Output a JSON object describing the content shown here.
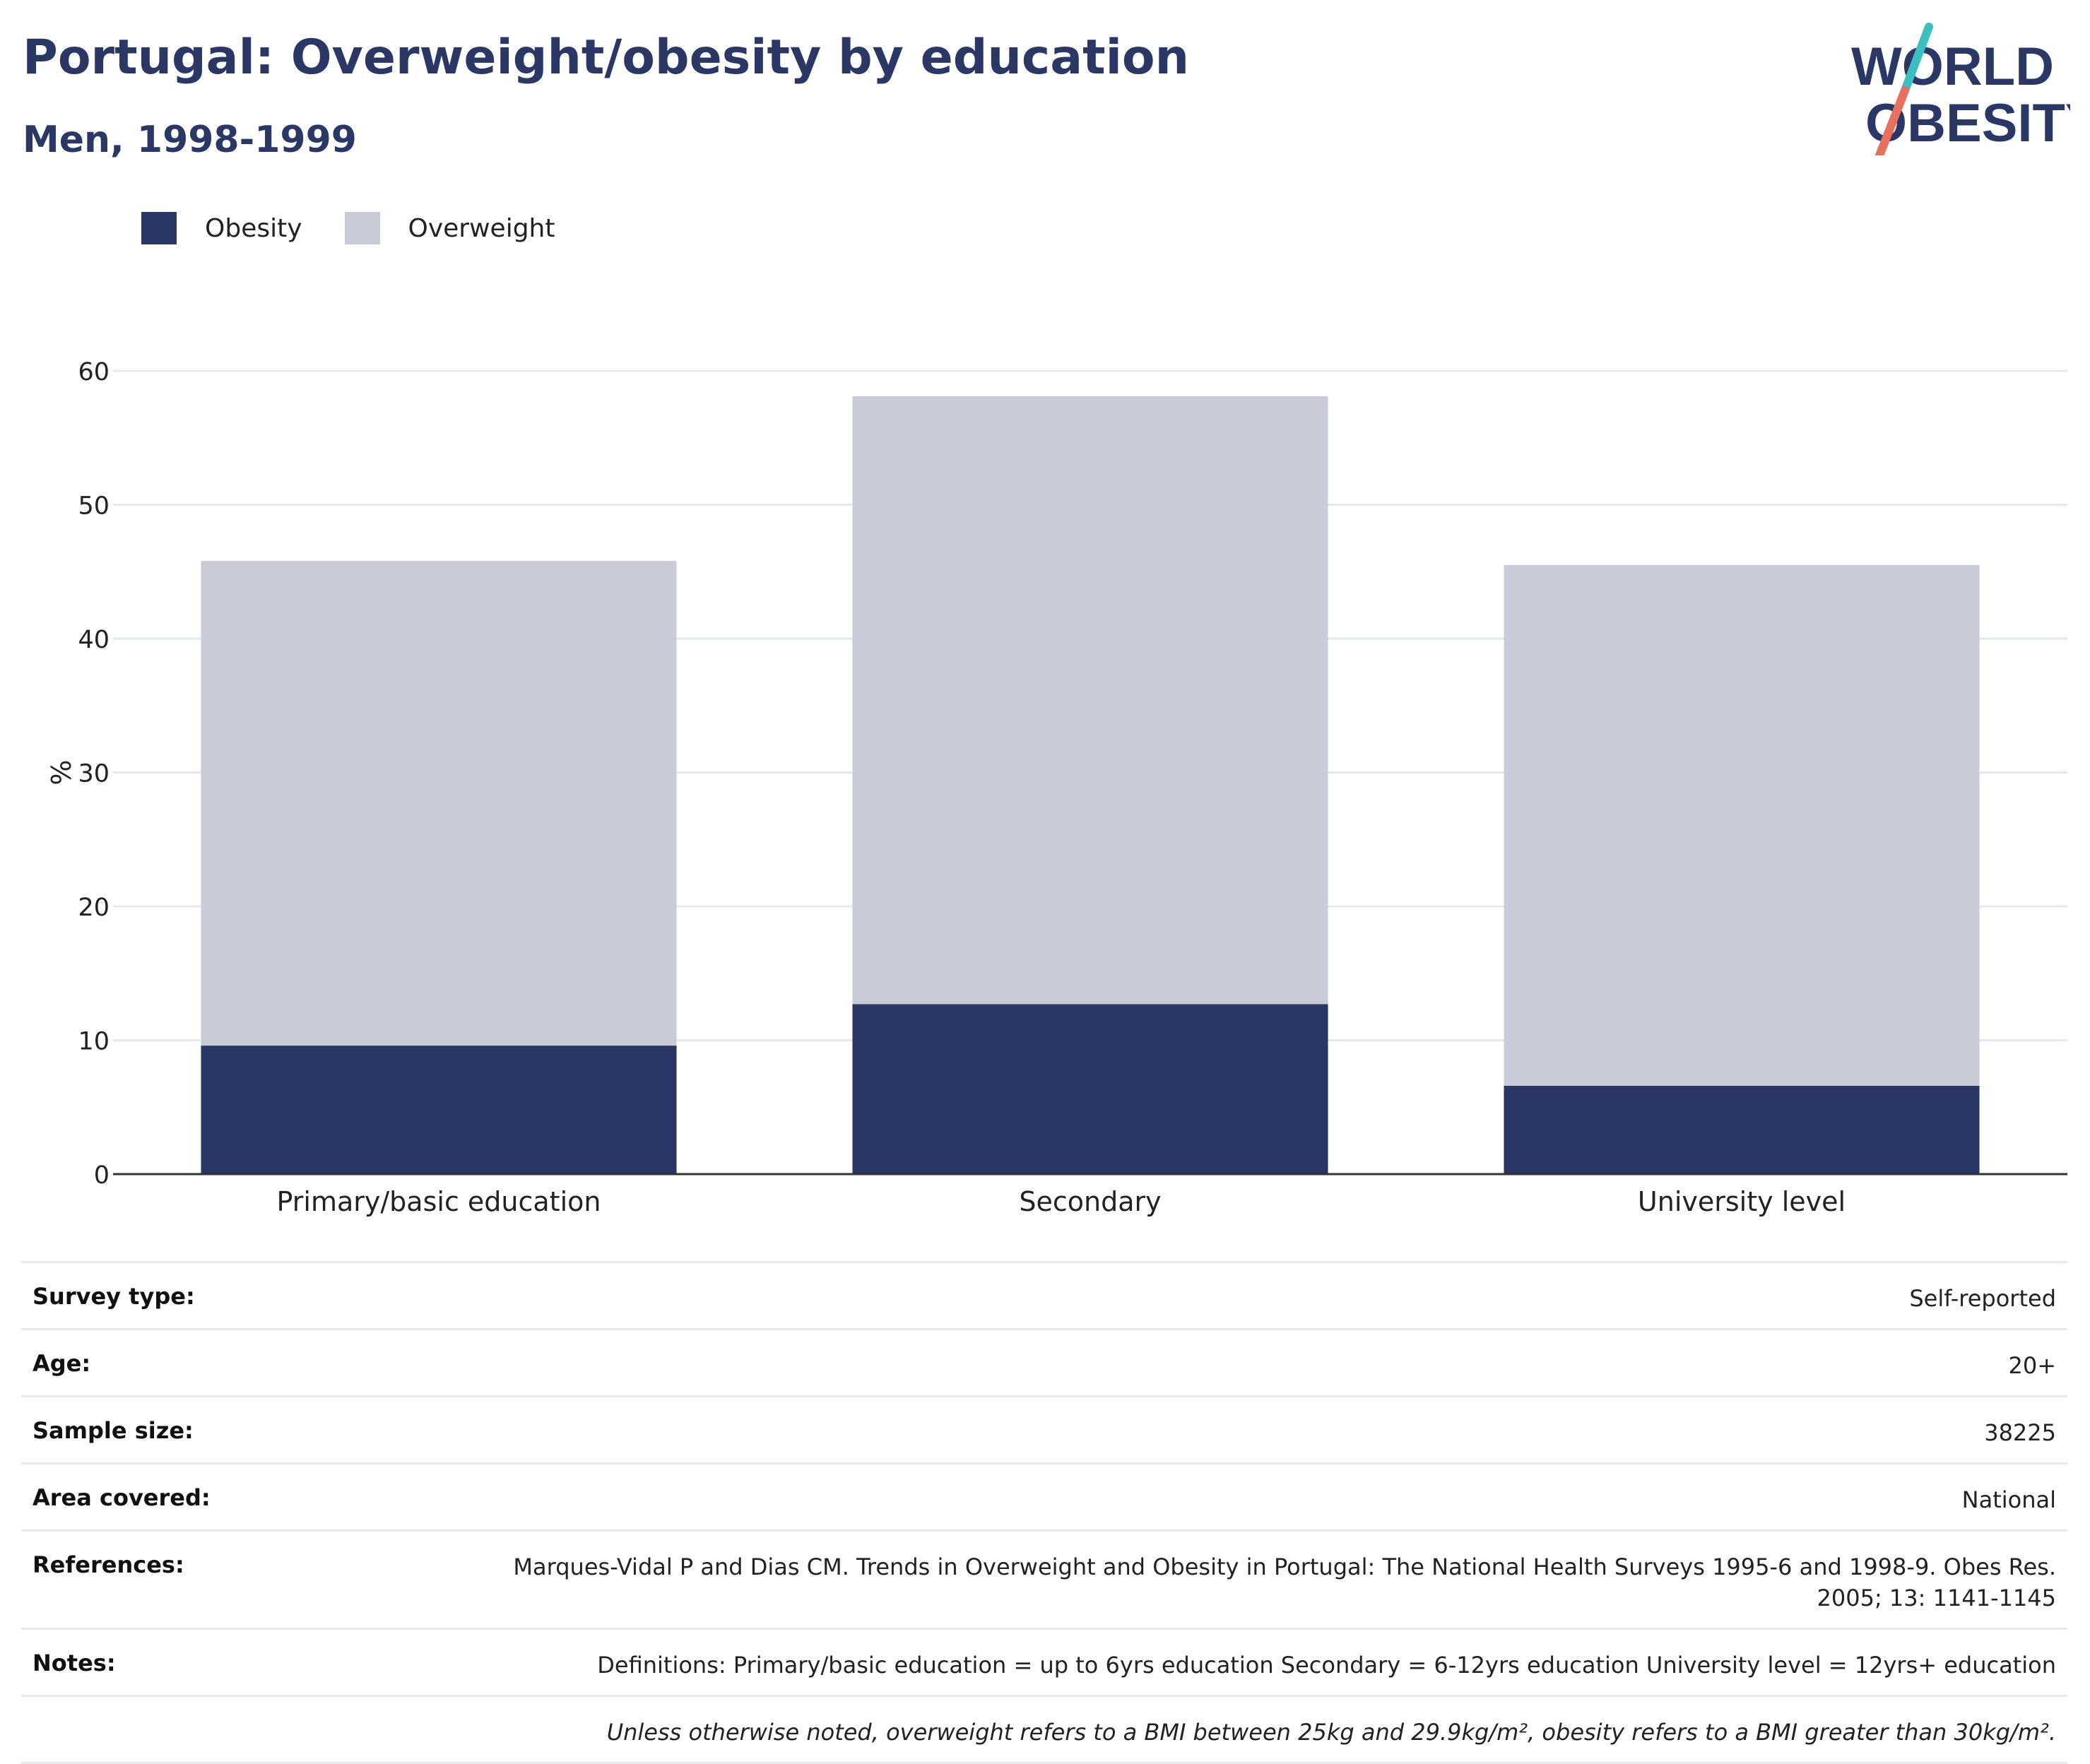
{
  "header": {
    "title": "Portugal: Overweight/obesity by education",
    "subtitle": "Men, 1998-1999"
  },
  "logo": {
    "line1": "WORLD",
    "line2": "OBESITY"
  },
  "colors": {
    "obesity": "#2a3663",
    "overweight": "#c9ccd8",
    "title": "#2b3866",
    "logo_teal": "#3dbfc0",
    "logo_coral": "#e8705e"
  },
  "legend": [
    {
      "label": "Obesity",
      "color": "#2a3663"
    },
    {
      "label": "Overweight",
      "color": "#c9ccd8"
    }
  ],
  "chart_data": {
    "type": "bar",
    "stacked": true,
    "categories": [
      "Primary/basic education",
      "Secondary",
      "University level"
    ],
    "series": [
      {
        "name": "Obesity",
        "values": [
          9.6,
          12.7,
          6.6
        ]
      },
      {
        "name": "Overweight",
        "values": [
          36.2,
          45.4,
          38.9
        ]
      }
    ],
    "ylabel": "%",
    "ylim": [
      0,
      60
    ],
    "yticks": [
      0,
      10,
      20,
      30,
      40,
      50,
      60
    ],
    "grid": true,
    "legend_position": "top-left"
  },
  "meta": [
    {
      "label": "Survey type:",
      "value": "Self-reported"
    },
    {
      "label": "Age:",
      "value": "20+"
    },
    {
      "label": "Sample size:",
      "value": "38225"
    },
    {
      "label": "Area covered:",
      "value": "National"
    },
    {
      "label": "References:",
      "value": "Marques-Vidal P and Dias CM. Trends in Overweight and Obesity in Portugal: The National Health Surveys 1995-6 and 1998-9. Obes Res. 2005; 13: 1141-1145"
    },
    {
      "label": "Notes:",
      "value": "Definitions: Primary/basic education = up to 6yrs education Secondary = 6-12yrs education University level = 12yrs+ education"
    }
  ],
  "footnote": "Unless otherwise noted, overweight refers to a BMI between 25kg and 29.9kg/m², obesity refers to a BMI greater than 30kg/m²."
}
